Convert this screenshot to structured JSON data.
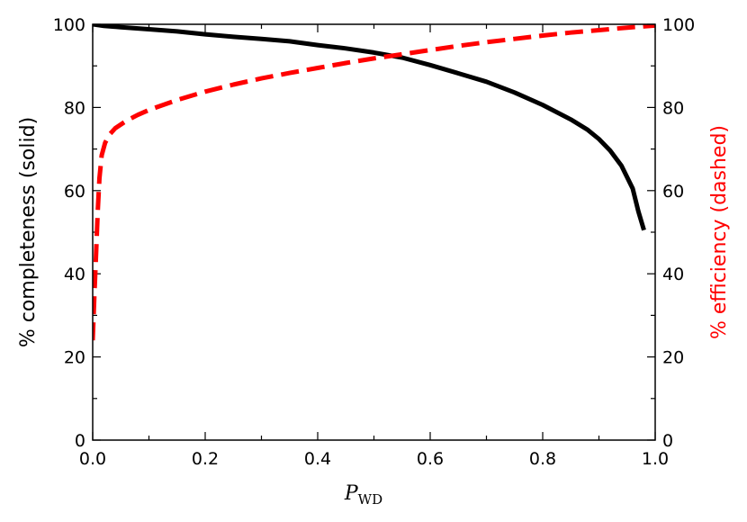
{
  "chart_data": {
    "type": "line",
    "xlabel": {
      "main": "P",
      "sub": "WD"
    },
    "ylabel_left": "% completeness (solid)",
    "ylabel_right": "% efficiency (dashed)",
    "xlim": [
      0.0,
      1.0
    ],
    "ylim": [
      0,
      100
    ],
    "x_ticks": [
      "0.0",
      "0.2",
      "0.4",
      "0.6",
      "0.8",
      "1.0"
    ],
    "x_tick_values": [
      0.0,
      0.2,
      0.4,
      0.6,
      0.8,
      1.0
    ],
    "x_minor_tick_values": [
      0.1,
      0.3,
      0.5,
      0.7,
      0.9
    ],
    "y_ticks": [
      "0",
      "20",
      "40",
      "60",
      "80",
      "100"
    ],
    "y_tick_values": [
      0,
      20,
      40,
      60,
      80,
      100
    ],
    "y_minor_tick_values": [
      10,
      30,
      50,
      70,
      90
    ],
    "series": [
      {
        "style": "solid",
        "color": "#000000",
        "axis": "left",
        "points": [
          [
            0.0,
            100
          ],
          [
            0.02,
            99.6
          ],
          [
            0.05,
            99.3
          ],
          [
            0.1,
            98.8
          ],
          [
            0.15,
            98.3
          ],
          [
            0.2,
            97.6
          ],
          [
            0.25,
            97.0
          ],
          [
            0.3,
            96.5
          ],
          [
            0.35,
            95.9
          ],
          [
            0.4,
            95.0
          ],
          [
            0.45,
            94.2
          ],
          [
            0.5,
            93.2
          ],
          [
            0.55,
            92.0
          ],
          [
            0.6,
            90.2
          ],
          [
            0.65,
            88.2
          ],
          [
            0.7,
            86.2
          ],
          [
            0.75,
            83.6
          ],
          [
            0.8,
            80.6
          ],
          [
            0.85,
            77.1
          ],
          [
            0.88,
            74.6
          ],
          [
            0.9,
            72.4
          ],
          [
            0.92,
            69.6
          ],
          [
            0.94,
            66.0
          ],
          [
            0.96,
            60.5
          ],
          [
            0.97,
            55.0
          ],
          [
            0.98,
            50.5
          ]
        ]
      },
      {
        "style": "dashed",
        "color": "#ff0000",
        "axis": "right",
        "points": [
          [
            0.0,
            24
          ],
          [
            0.003,
            35
          ],
          [
            0.006,
            45
          ],
          [
            0.009,
            55
          ],
          [
            0.012,
            63
          ],
          [
            0.016,
            68.5
          ],
          [
            0.022,
            71.5
          ],
          [
            0.03,
            73.5
          ],
          [
            0.04,
            75.0
          ],
          [
            0.06,
            76.8
          ],
          [
            0.08,
            78.2
          ],
          [
            0.1,
            79.4
          ],
          [
            0.15,
            81.8
          ],
          [
            0.2,
            83.8
          ],
          [
            0.25,
            85.5
          ],
          [
            0.3,
            87.0
          ],
          [
            0.35,
            88.3
          ],
          [
            0.4,
            89.5
          ],
          [
            0.45,
            90.7
          ],
          [
            0.5,
            91.8
          ],
          [
            0.55,
            92.8
          ],
          [
            0.6,
            93.8
          ],
          [
            0.65,
            94.8
          ],
          [
            0.7,
            95.7
          ],
          [
            0.75,
            96.5
          ],
          [
            0.8,
            97.3
          ],
          [
            0.85,
            98.0
          ],
          [
            0.9,
            98.6
          ],
          [
            0.95,
            99.2
          ],
          [
            1.0,
            99.7
          ]
        ]
      }
    ],
    "grid": false,
    "legend": "none"
  }
}
